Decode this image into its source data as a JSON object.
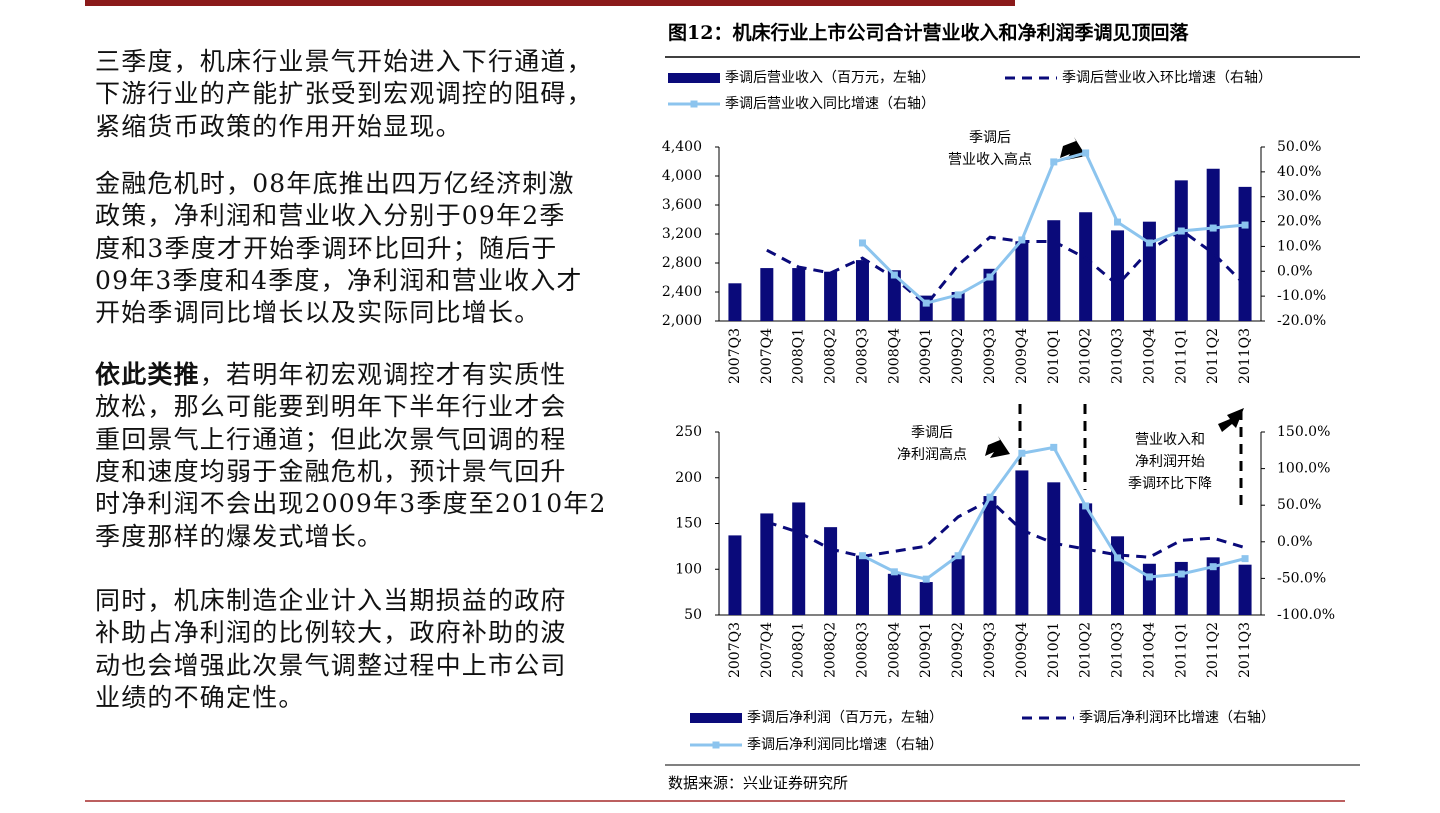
{
  "text": {
    "paragraphs": [
      {
        "lines": [
          "三季度，机床行业景气开始进入下行通道，",
          "下游行业的产能扩张受到宏观调控的阻碍，",
          "紧缩货币政策的作用开始显现。"
        ]
      },
      {
        "lines": [
          "金融危机时，08年底推出四万亿经济刺激",
          "政策，净利润和营业收入分别于09年2季",
          "度和3季度才开始季调环比回升；随后于",
          "09年3季度和4季度，净利润和营业收入才",
          "开始季调同比增长以及实际同比增长。"
        ]
      },
      {
        "lead": "依此类推",
        "lines": [
          "，若明年初宏观调控才有实质性",
          "放松，那么可能要到明年下半年行业才会",
          "重回景气上行通道；但此次景气回调的程",
          "度和速度均弱于金融危机，预计景气回升",
          "时净利润不会出现2009年3季度至2010年2",
          "季度那样的爆发式增长。"
        ]
      },
      {
        "lines": [
          "同时，机床制造企业计入当期损益的政府",
          "补助占净利润的比例较大，政府补助的波",
          "动也会增强此次景气调整过程中上市公司",
          "业绩的不确定性。"
        ]
      }
    ]
  },
  "figure": {
    "title": "图12：机床行业上市公司合计营业收入和净利润季调见顶回落",
    "source": "数据来源：兴业证券研究所"
  },
  "chart_data": [
    {
      "type": "bar",
      "legend": "top",
      "categories": [
        "2007Q3",
        "2007Q4",
        "2008Q1",
        "2008Q2",
        "2008Q3",
        "2008Q4",
        "2009Q1",
        "2009Q2",
        "2009Q3",
        "2009Q4",
        "2010Q1",
        "2010Q2",
        "2010Q3",
        "2010Q4",
        "2011Q1",
        "2011Q2",
        "2011Q3"
      ],
      "series": [
        {
          "name": "季调后营业收入（百万元，左轴）",
          "type": "bar",
          "color": "#0a0a7a",
          "values": [
            2520,
            2730,
            2730,
            2680,
            2840,
            2700,
            2350,
            2400,
            2720,
            3100,
            3390,
            3500,
            3250,
            3370,
            3940,
            4100,
            3850
          ]
        },
        {
          "name": "季调后营业收入环比增速（右轴）",
          "type": "line",
          "line_style": "dashed",
          "axis": "y2",
          "color": "#0a0a7a",
          "values": [
            null,
            8.5,
            1.7,
            -0.7,
            5.3,
            -2.7,
            -13.5,
            2.5,
            13.7,
            12,
            12,
            5.3,
            -5.5,
            8.5,
            16.5,
            7.3,
            -5.5
          ]
        },
        {
          "name": "季调后营业收入同比增速（右轴）",
          "type": "line",
          "line_style": "solid",
          "marker": "square",
          "axis": "y2",
          "color": "#8cc4ee",
          "values": [
            null,
            null,
            null,
            null,
            11.4,
            -1.5,
            -12.8,
            -9.5,
            -2.3,
            12.6,
            44,
            47.6,
            19.8,
            11.4,
            16.2,
            17.4,
            18.6
          ]
        }
      ],
      "ylim": [
        2000,
        4400
      ],
      "yticks": [
        {
          "value": 2000,
          "label": "2,000"
        },
        {
          "value": 2400,
          "label": "2,400"
        },
        {
          "value": 2800,
          "label": "2,800"
        },
        {
          "value": 3200,
          "label": "3,200"
        },
        {
          "value": 3600,
          "label": "3,600"
        },
        {
          "value": 4000,
          "label": "4,000"
        },
        {
          "value": 4400,
          "label": "4,400"
        }
      ],
      "y2lim": [
        -20,
        50
      ],
      "y2ticks": [
        {
          "value": -20,
          "label": "-20.0%"
        },
        {
          "value": -10,
          "label": "-10.0%"
        },
        {
          "value": 0,
          "label": "0.0%"
        },
        {
          "value": 10,
          "label": "10.0%"
        },
        {
          "value": 20,
          "label": "20.0%"
        },
        {
          "value": 30,
          "label": "30.0%"
        },
        {
          "value": 40,
          "label": "40.0%"
        },
        {
          "value": 50,
          "label": "50.0%"
        }
      ],
      "annotations": [
        {
          "lines": [
            "季调后",
            "营业收入高点"
          ]
        }
      ]
    },
    {
      "type": "bar",
      "legend": "bottom",
      "categories": [
        "2007Q3",
        "2007Q4",
        "2008Q1",
        "2008Q2",
        "2008Q3",
        "2008Q4",
        "2009Q1",
        "2009Q2",
        "2009Q3",
        "2009Q4",
        "2010Q1",
        "2010Q2",
        "2010Q3",
        "2010Q4",
        "2011Q1",
        "2011Q2",
        "2011Q3"
      ],
      "series": [
        {
          "name": "季调后净利润（百万元，左轴）",
          "type": "bar",
          "color": "#0a0a7a",
          "values": [
            137,
            161,
            173,
            146,
            115,
            95,
            86,
            115,
            180,
            208,
            195,
            172,
            136,
            106,
            108,
            113,
            105
          ]
        },
        {
          "name": "季调后净利润环比增速（右轴）",
          "type": "line",
          "line_style": "dashed",
          "axis": "y2",
          "color": "#0a0a7a",
          "values": [
            null,
            27,
            13,
            -10,
            -20,
            -13,
            -6,
            34,
            57,
            16,
            -2,
            -10,
            -18,
            -21,
            2,
            5,
            -8
          ]
        },
        {
          "name": "季调后净利润同比增速（右轴）",
          "type": "line",
          "line_style": "solid",
          "marker": "square",
          "axis": "y2",
          "color": "#8cc4ee",
          "values": [
            null,
            null,
            null,
            null,
            -19,
            -41,
            -51,
            -19,
            61,
            121,
            129,
            49,
            -22,
            -48,
            -44,
            -34,
            -23
          ]
        }
      ],
      "ylim": [
        50,
        250
      ],
      "yticks": [
        50,
        100,
        150,
        200,
        250
      ],
      "y2lim": [
        -100,
        150
      ],
      "y2ticks": [
        {
          "value": -100,
          "label": "-100.0%"
        },
        {
          "value": -50,
          "label": "-50.0%"
        },
        {
          "value": 0,
          "label": "0.0%"
        },
        {
          "value": 50,
          "label": "50.0%"
        },
        {
          "value": 100,
          "label": "100.0%"
        },
        {
          "value": 150,
          "label": "150.0%"
        }
      ],
      "annotations": [
        {
          "lines": [
            "季调后",
            "净利润高点"
          ]
        },
        {
          "lines": [
            "营业收入和",
            "净利润开始",
            "季调环比下降"
          ]
        }
      ]
    }
  ]
}
